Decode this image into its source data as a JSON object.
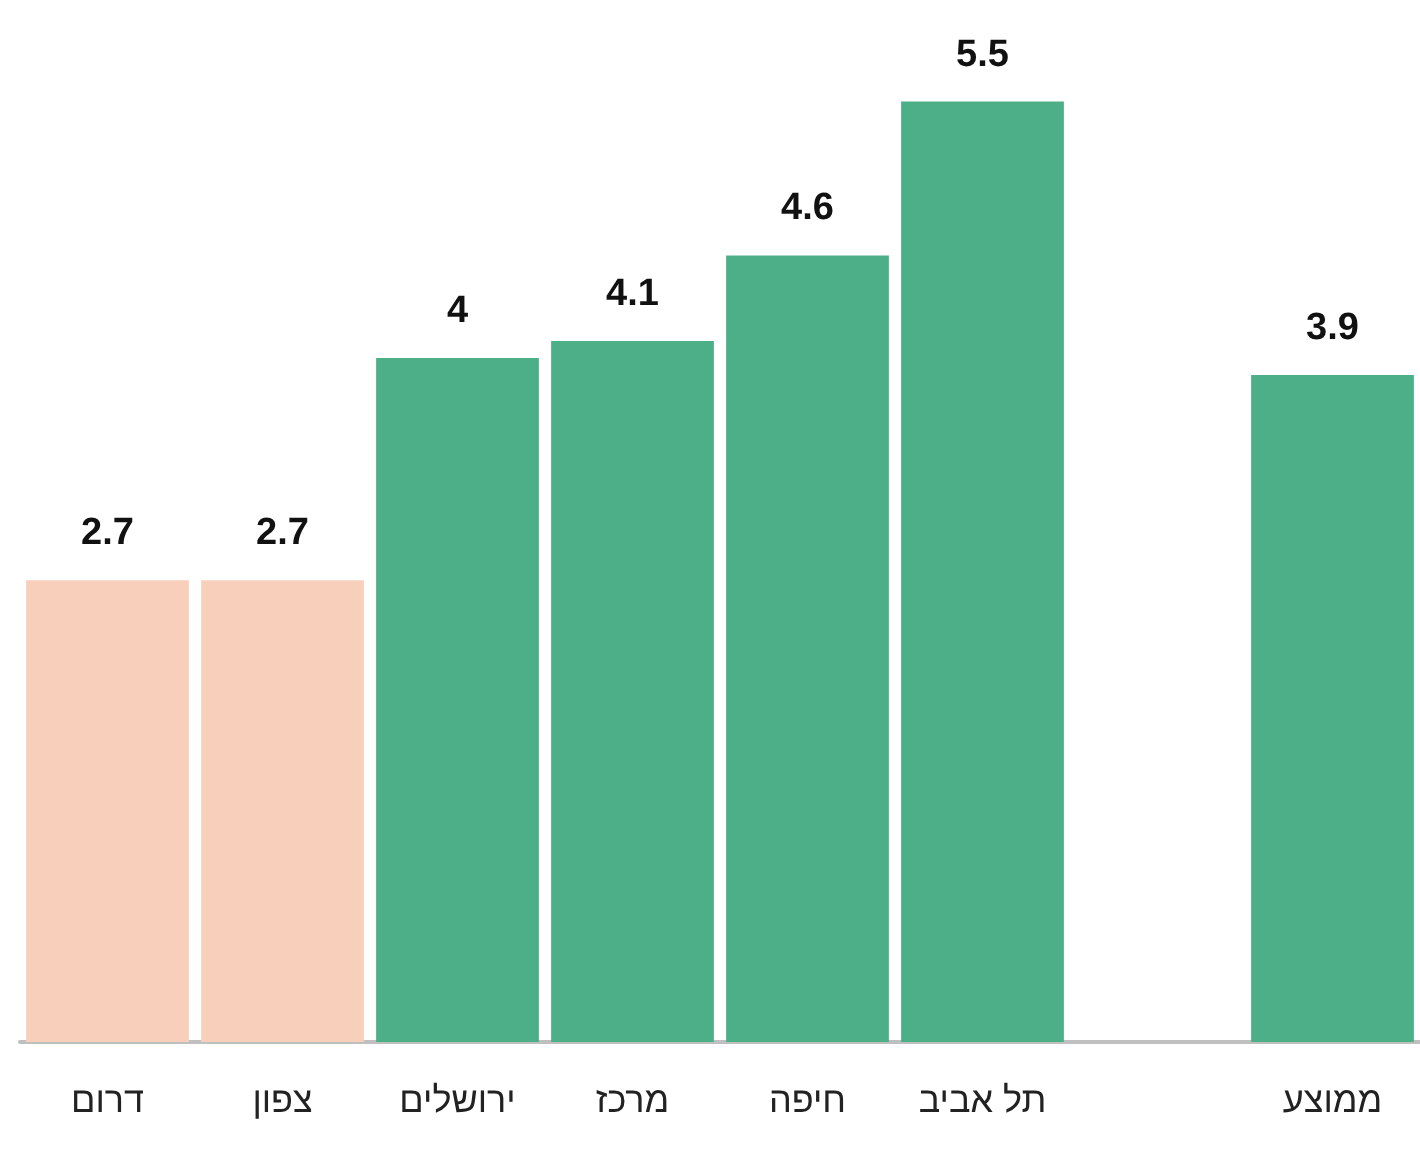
{
  "chart_data": {
    "type": "bar",
    "categories": [
      "דרום",
      "צפון",
      "ירושלים",
      "מרכז",
      "חיפה",
      "תל אביב",
      null,
      "ממוצע"
    ],
    "values": [
      2.7,
      2.7,
      4,
      4.1,
      4.6,
      5.5,
      null,
      3.9
    ],
    "colors": [
      "#f8cfbb",
      "#f8cfbb",
      "#4daf87",
      "#4daf87",
      "#4daf87",
      "#4daf87",
      "#4daf87",
      "#4daf87"
    ],
    "data_labels": true,
    "tick_labels": "x"
  }
}
